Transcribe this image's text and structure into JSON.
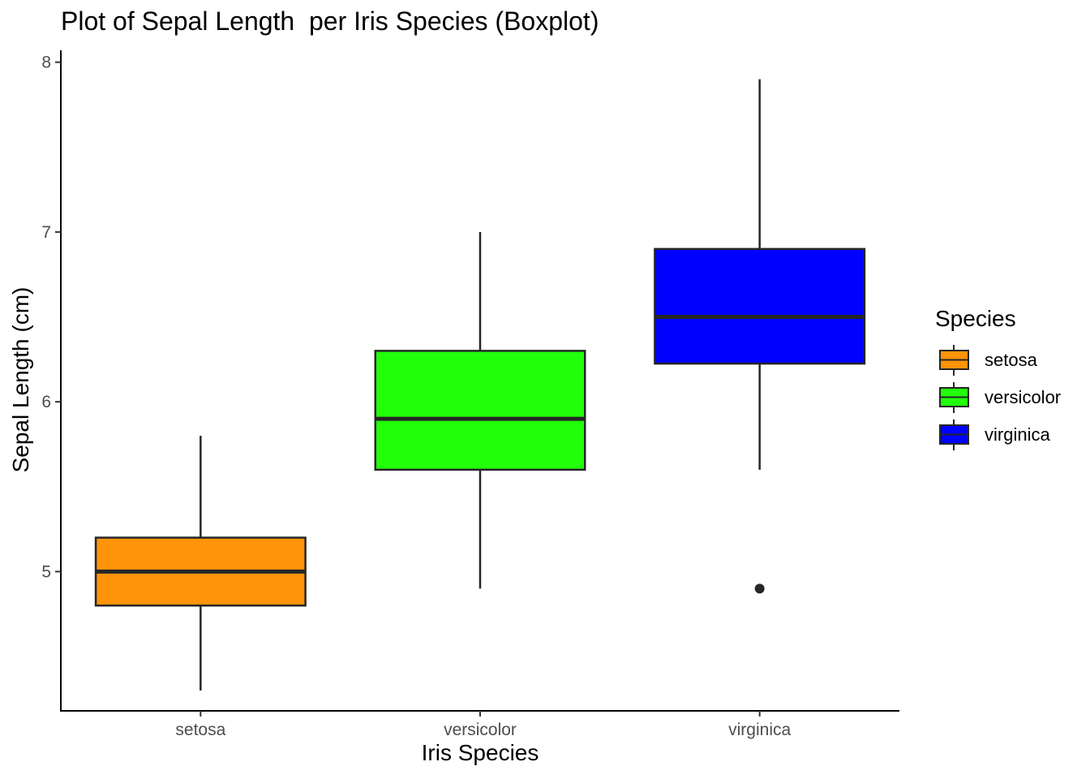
{
  "chart_data": {
    "type": "boxplot",
    "title": "Plot of Sepal Length  per Iris Species (Boxplot)",
    "xlabel": "Iris Species",
    "ylabel": "Sepal Length (cm)",
    "ylim": [
      4.18,
      8.07
    ],
    "yticks": [
      5,
      6,
      7,
      8
    ],
    "grid": false,
    "legend": {
      "title": "Species",
      "placement": "right"
    },
    "categories": [
      "setosa",
      "versicolor",
      "virginica"
    ],
    "series": [
      {
        "name": "setosa",
        "color": "#FF9309",
        "min": 4.3,
        "q1": 4.8,
        "median": 5.0,
        "q3": 5.2,
        "max": 5.8,
        "outliers": []
      },
      {
        "name": "versicolor",
        "color": "#21FF0B",
        "min": 4.9,
        "q1": 5.6,
        "median": 5.9,
        "q3": 6.3,
        "max": 7.0,
        "outliers": []
      },
      {
        "name": "virginica",
        "color": "#0000FF",
        "min": 5.6,
        "q1": 6.225,
        "median": 6.5,
        "q3": 6.9,
        "max": 7.9,
        "outliers": [
          4.9
        ]
      }
    ]
  }
}
